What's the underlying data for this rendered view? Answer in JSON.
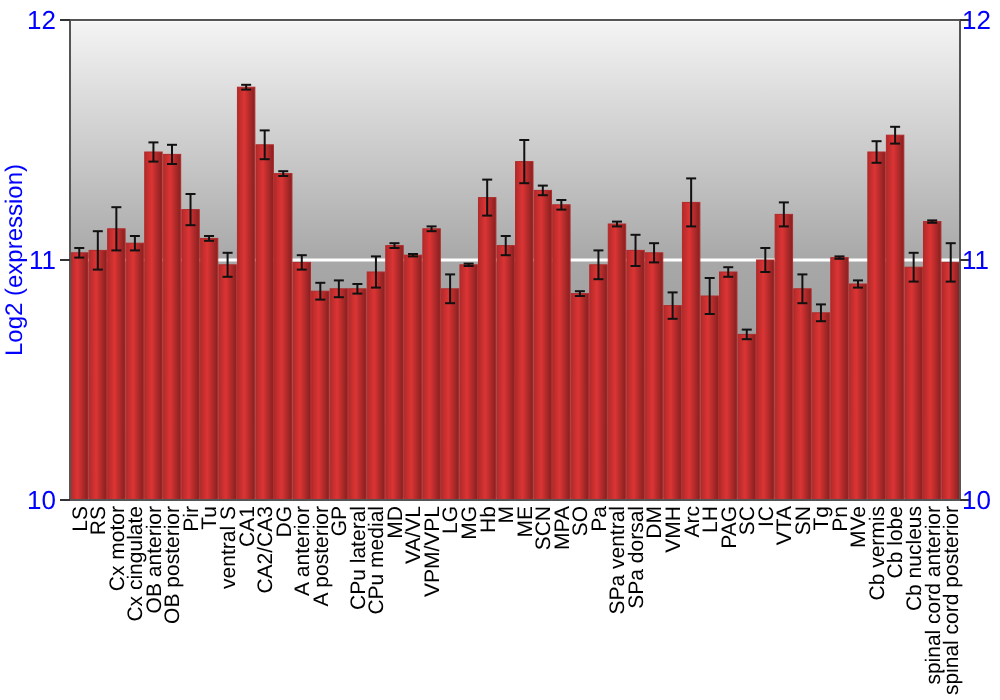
{
  "chart_data": {
    "type": "bar",
    "ylabel": "Log2 (expression)",
    "categories": [
      "LS",
      "RS",
      "Cx motor",
      "Cx cingulate",
      "OB anterior",
      "OB posterior",
      "Pir",
      "Tu",
      "ventral S",
      "CA1",
      "CA2/CA3",
      "DG",
      "A anterior",
      "A posterior",
      "GP",
      "CPu lateral",
      "CPu medial",
      "MD",
      "VA/VL",
      "VPM/VPL",
      "LG",
      "MG",
      "Hb",
      "M",
      "ME",
      "SCN",
      "MPA",
      "SO",
      "Pa",
      "SPa ventral",
      "SPa dorsal",
      "DM",
      "VMH",
      "Arc",
      "LH",
      "PAG",
      "SC",
      "IC",
      "VTA",
      "SN",
      "Tg",
      "Pn",
      "MVe",
      "Cb vermis",
      "Cb lobe",
      "Cb nucleus",
      "spinal cord anterior",
      "spinal cord posterior"
    ],
    "values": [
      11.03,
      11.04,
      11.13,
      11.07,
      11.45,
      11.44,
      11.21,
      11.09,
      10.98,
      11.72,
      11.48,
      11.36,
      10.99,
      10.87,
      10.88,
      10.88,
      10.95,
      11.06,
      11.02,
      11.13,
      10.88,
      10.98,
      11.26,
      11.06,
      11.41,
      11.29,
      11.23,
      10.86,
      10.98,
      11.15,
      11.04,
      11.03,
      10.81,
      11.24,
      10.85,
      10.95,
      10.69,
      11.0,
      11.19,
      10.88,
      10.78,
      11.01,
      10.9,
      11.45,
      11.52,
      10.97,
      11.16,
      10.99
    ],
    "errors": [
      0.02,
      0.08,
      0.09,
      0.03,
      0.04,
      0.04,
      0.065,
      0.01,
      0.05,
      0.01,
      0.06,
      0.01,
      0.03,
      0.035,
      0.035,
      0.02,
      0.065,
      0.01,
      0.005,
      0.01,
      0.06,
      0.005,
      0.075,
      0.04,
      0.09,
      0.02,
      0.02,
      0.01,
      0.06,
      0.01,
      0.065,
      0.04,
      0.055,
      0.1,
      0.075,
      0.02,
      0.02,
      0.05,
      0.05,
      0.06,
      0.035,
      0.005,
      0.015,
      0.045,
      0.035,
      0.06,
      0.005,
      0.08
    ],
    "color": "#b22a2a",
    "ylim": [
      10,
      12
    ],
    "yticks": [
      10,
      11,
      12
    ],
    "y2lim": [
      10,
      12
    ],
    "y2ticks": [
      10,
      11,
      12
    ],
    "grid": "y"
  }
}
